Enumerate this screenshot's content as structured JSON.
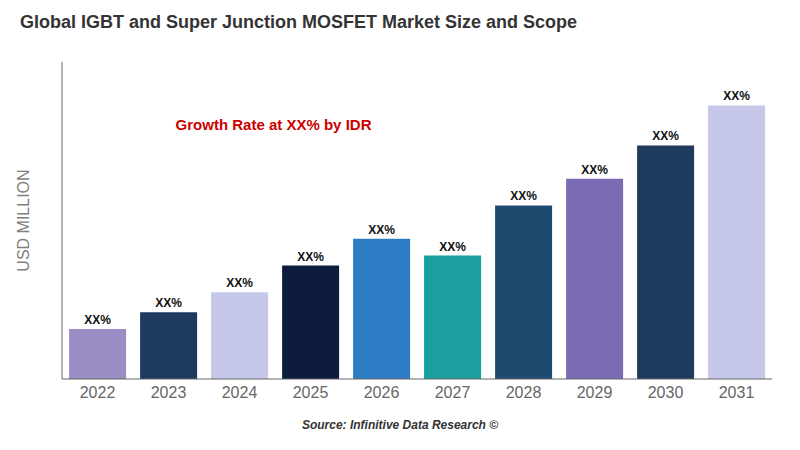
{
  "chart_data": {
    "type": "bar",
    "title": "Global IGBT and Super Junction MOSFET Market Size and Scope",
    "ylabel": "USD MILLION",
    "source": "Source: Infinitive Data Research ©",
    "annotations": [
      {
        "text": "Growth Rate at XX% by IDR",
        "color": "#cc0000"
      }
    ],
    "categories": [
      "2022",
      "2023",
      "2024",
      "2025",
      "2026",
      "2027",
      "2028",
      "2029",
      "2030",
      "2031"
    ],
    "values": [
      15,
      20,
      26,
      34,
      42,
      37,
      52,
      60,
      70,
      82
    ],
    "value_labels": [
      "XX%",
      "XX%",
      "XX%",
      "XX%",
      "XX%",
      "XX%",
      "XX%",
      "XX%",
      "XX%",
      "XX%"
    ],
    "colors": [
      "#9b8ec4",
      "#1e3a5f",
      "#c5c8e8",
      "#0d1b3e",
      "#2e7dc4",
      "#1a9e9e",
      "#1e4a6e",
      "#7b6bb5",
      "#1e3a5f",
      "#c5c8e8"
    ],
    "ylim": [
      0,
      95
    ],
    "tick_labels": "x",
    "grid": false
  }
}
